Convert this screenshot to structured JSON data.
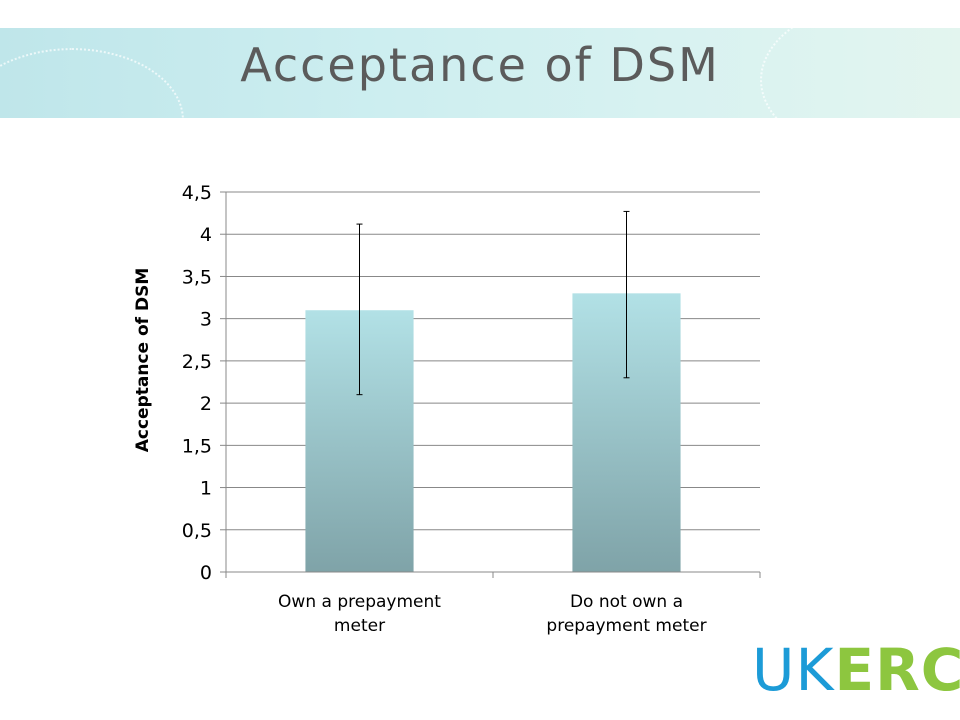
{
  "slide": {
    "title": "Acceptance of DSM"
  },
  "logo": {
    "part1": "UK",
    "part2": "ERC"
  },
  "colors": {
    "bar_top": "#b2e1e6",
    "bar_bottom": "#7fa3a8",
    "grid": "#888888",
    "logo_blue": "#1c9bd7",
    "logo_green": "#8dc63f"
  },
  "chart_data": {
    "type": "bar",
    "title": "",
    "xlabel": "",
    "ylabel": "Acceptance of DSM",
    "ylim": [
      0,
      4.5
    ],
    "yticks": [
      "0",
      "0,5",
      "1",
      "1,5",
      "2",
      "2,5",
      "3",
      "3,5",
      "4",
      "4,5"
    ],
    "ytick_values": [
      0,
      0.5,
      1,
      1.5,
      2,
      2.5,
      3,
      3.5,
      4,
      4.5
    ],
    "grid": true,
    "categories": [
      {
        "lines": [
          "Own a prepayment",
          "meter"
        ]
      },
      {
        "lines": [
          "Do not own a",
          "prepayment meter"
        ]
      }
    ],
    "values": [
      3.1,
      3.3
    ],
    "error_bars": [
      {
        "low": 2.1,
        "high": 4.12
      },
      {
        "low": 2.3,
        "high": 4.27
      }
    ]
  }
}
